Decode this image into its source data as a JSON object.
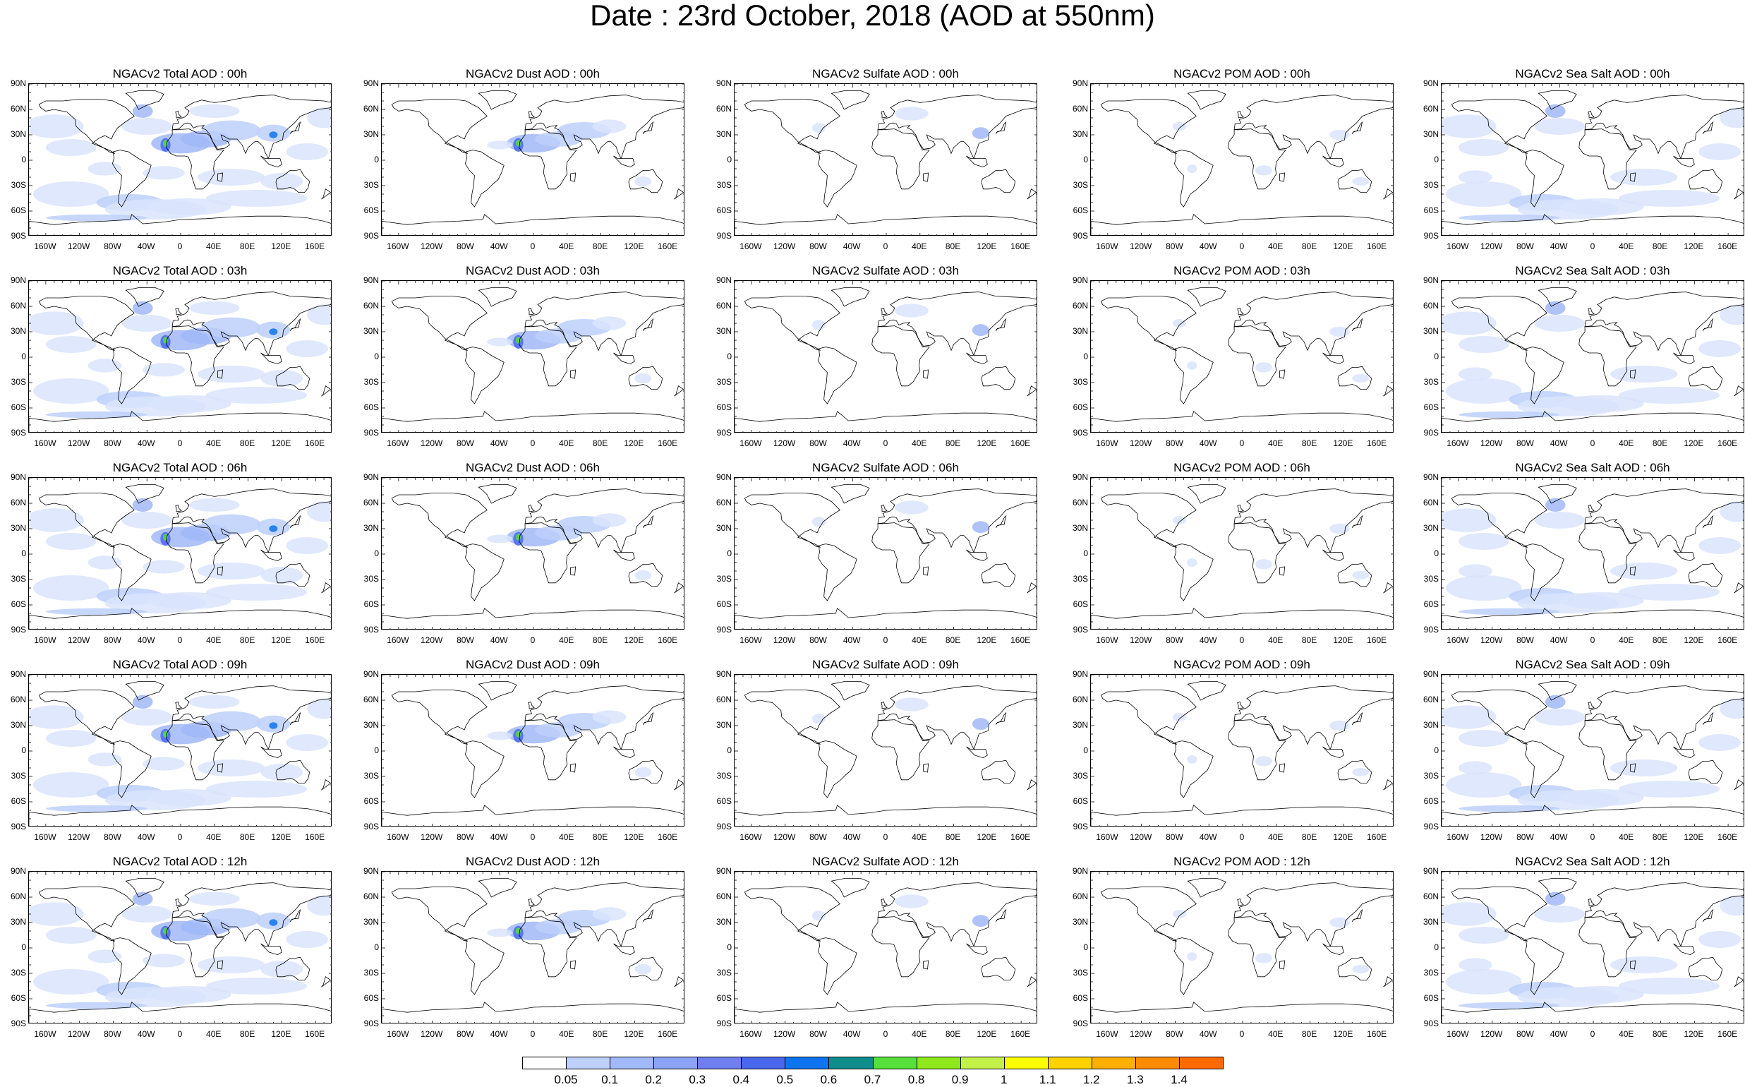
{
  "title": "Date : 23rd October, 2018 (AOD at 550nm)",
  "panels": [
    [
      "NGACv2 Total AOD : 00h",
      "NGACv2 Dust AOD : 00h",
      "NGACv2 Sulfate AOD : 00h",
      "NGACv2 POM AOD : 00h",
      "NGACv2 Sea Salt AOD : 00h"
    ],
    [
      "NGACv2 Total AOD : 03h",
      "NGACv2 Dust AOD : 03h",
      "NGACv2 Sulfate AOD : 03h",
      "NGACv2 POM AOD : 03h",
      "NGACv2 Sea Salt AOD : 03h"
    ],
    [
      "NGACv2 Total AOD : 06h",
      "NGACv2 Dust AOD : 06h",
      "NGACv2 Sulfate AOD : 06h",
      "NGACv2 POM AOD : 06h",
      "NGACv2 Sea Salt AOD : 06h"
    ],
    [
      "NGACv2 Total AOD : 09h",
      "NGACv2 Dust AOD : 09h",
      "NGACv2 Sulfate AOD : 09h",
      "NGACv2 POM AOD : 09h",
      "NGACv2 Sea Salt  AOD : 09h"
    ],
    [
      "NGACv2 Total AOD  : 12h",
      "NGACv2 Dust AOD : 12h",
      "NGACv2 Sulfate AOD : 12h",
      "NGACv2 POM  AOD : 12h",
      "NGACv2 Sea Salt AOD : 12h"
    ]
  ],
  "lat_labels": [
    "90N",
    "60N",
    "30N",
    "0",
    "30S",
    "60S",
    "90S"
  ],
  "lon_labels": [
    "160W",
    "120W",
    "80W",
    "40W",
    "0",
    "40E",
    "80E",
    "120E",
    "160E"
  ],
  "colorbar": {
    "labels": [
      "0.05",
      "0.1",
      "0.2",
      "0.3",
      "0.4",
      "0.5",
      "0.6",
      "0.7",
      "0.8",
      "0.9",
      "1",
      "1.1",
      "1.2",
      "1.3",
      "1.4"
    ],
    "colors": [
      "#ffffff",
      "#d9e4fd",
      "#bdd0fb",
      "#a1b9f8",
      "#8aa3f5",
      "#6f7ff0",
      "#4a68ee",
      "#0e74f0",
      "#0f8c8c",
      "#55e03a",
      "#8ee81c",
      "#c4f04a",
      "#ffff00",
      "#ffd200",
      "#ffb000",
      "#ff8c00",
      "#ff6b00",
      "#ff2a00"
    ]
  }
}
